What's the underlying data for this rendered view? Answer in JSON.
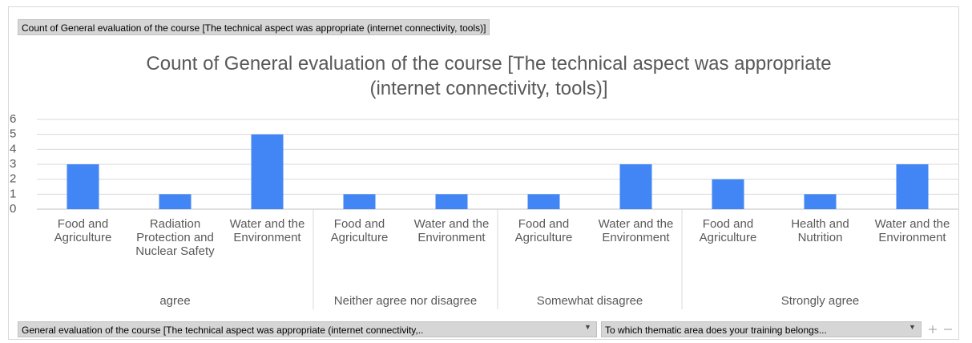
{
  "value_field_button": "Count of General evaluation of the course [The technical aspect was appropriate (internet connectivity, tools)]",
  "axis_field_buttons": [
    "General evaluation of the course [The  technical aspect was appropriate (internet connectivity,..",
    "To which thematic area does your training belongs..."
  ],
  "chart_data": {
    "type": "bar",
    "title": "Count of General evaluation of the course [The technical aspect was appropriate (internet connectivity, tools)]",
    "categories": [
      "Food and Agriculture",
      "Radiation Protection and Nuclear Safety",
      "Water and the Environment",
      "Food and Agriculture",
      "Water and the Environment",
      "Food and Agriculture",
      "Water and the Environment",
      "Food and Agriculture",
      "Health and Nutrition",
      "Water and the Environment"
    ],
    "groups": [
      "agree",
      "agree",
      "agree",
      "Neither agree nor disagree",
      "Neither agree nor disagree",
      "Somewhat disagree",
      "Somewhat disagree",
      "Strongly agree",
      "Strongly agree",
      "Strongly agree"
    ],
    "values": [
      3,
      1,
      5,
      1,
      1,
      1,
      3,
      2,
      1,
      3
    ],
    "color": "#4285f4",
    "ylim": [
      0,
      6
    ],
    "yticks": [
      0,
      1,
      2,
      3,
      4,
      5,
      6
    ],
    "grid": true
  }
}
